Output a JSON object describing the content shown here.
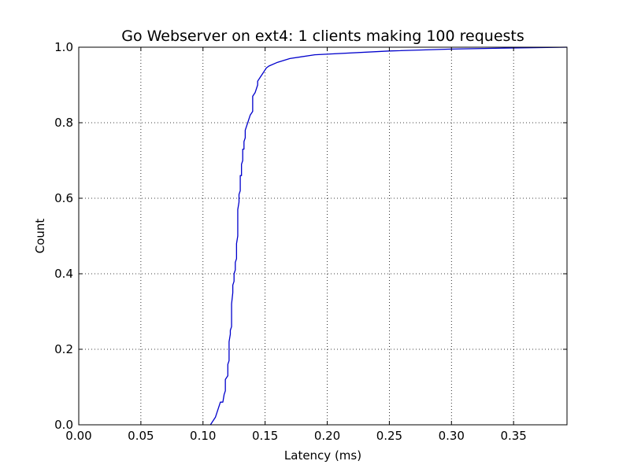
{
  "chart_data": {
    "type": "line",
    "title": "Go Webserver on ext4: 1 clients making 100 requests",
    "xlabel": "Latency (ms)",
    "ylabel": "Count",
    "xlim": [
      0.0,
      0.393
    ],
    "ylim": [
      0.0,
      1.0
    ],
    "xticks": [
      "0.00",
      "0.05",
      "0.10",
      "0.15",
      "0.20",
      "0.25",
      "0.30",
      "0.35"
    ],
    "yticks": [
      "0.0",
      "0.2",
      "0.4",
      "0.6",
      "0.8",
      "1.0"
    ],
    "grid": true,
    "series": [
      {
        "color": "#0000cc",
        "x": [
          0.106,
          0.11,
          0.112,
          0.114,
          0.116,
          0.117,
          0.117,
          0.118,
          0.118,
          0.12,
          0.12,
          0.121,
          0.121,
          0.122,
          0.122,
          0.123,
          0.123,
          0.124,
          0.124,
          0.125,
          0.125,
          0.126,
          0.126,
          0.127,
          0.127,
          0.128,
          0.128,
          0.129,
          0.129,
          0.13,
          0.13,
          0.131,
          0.131,
          0.132,
          0.132,
          0.133,
          0.133,
          0.134,
          0.134,
          0.135,
          0.136,
          0.138,
          0.14,
          0.14,
          0.142,
          0.144,
          0.144,
          0.146,
          0.148,
          0.15,
          0.151,
          0.153,
          0.16,
          0.17,
          0.19,
          0.25,
          0.3,
          0.35,
          0.393
        ],
        "y": [
          0.0,
          0.02,
          0.04,
          0.06,
          0.06,
          0.08,
          0.08,
          0.09,
          0.12,
          0.13,
          0.16,
          0.17,
          0.22,
          0.24,
          0.25,
          0.26,
          0.32,
          0.35,
          0.37,
          0.38,
          0.4,
          0.41,
          0.43,
          0.44,
          0.48,
          0.5,
          0.57,
          0.59,
          0.61,
          0.62,
          0.66,
          0.66,
          0.69,
          0.7,
          0.73,
          0.73,
          0.75,
          0.76,
          0.78,
          0.79,
          0.8,
          0.82,
          0.83,
          0.87,
          0.88,
          0.9,
          0.91,
          0.92,
          0.93,
          0.94,
          0.945,
          0.95,
          0.96,
          0.97,
          0.98,
          0.99,
          0.995,
          0.998,
          1.0
        ]
      }
    ]
  }
}
